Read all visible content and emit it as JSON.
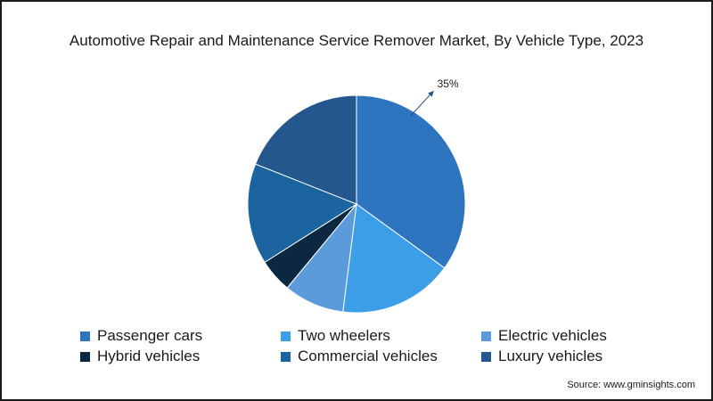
{
  "chart_data": {
    "type": "pie",
    "title": "Automotive Repair and Maintenance Service Remover Market, By Vehicle Type, 2023",
    "categories": [
      "Passenger cars",
      "Two wheelers",
      "Electric vehicles",
      "Hybrid vehicles",
      "Commercial vehicles",
      "Luxury vehicles"
    ],
    "values": [
      35,
      17,
      9,
      5,
      15,
      19
    ],
    "colors": [
      "#2e75c0",
      "#3c9ee6",
      "#5b9bdc",
      "#0c2740",
      "#1b64a0",
      "#25578f"
    ],
    "annotation": {
      "category": "Passenger cars",
      "label": "35%"
    },
    "legend_position": "bottom"
  },
  "source": "Source: www.gminsights.com"
}
